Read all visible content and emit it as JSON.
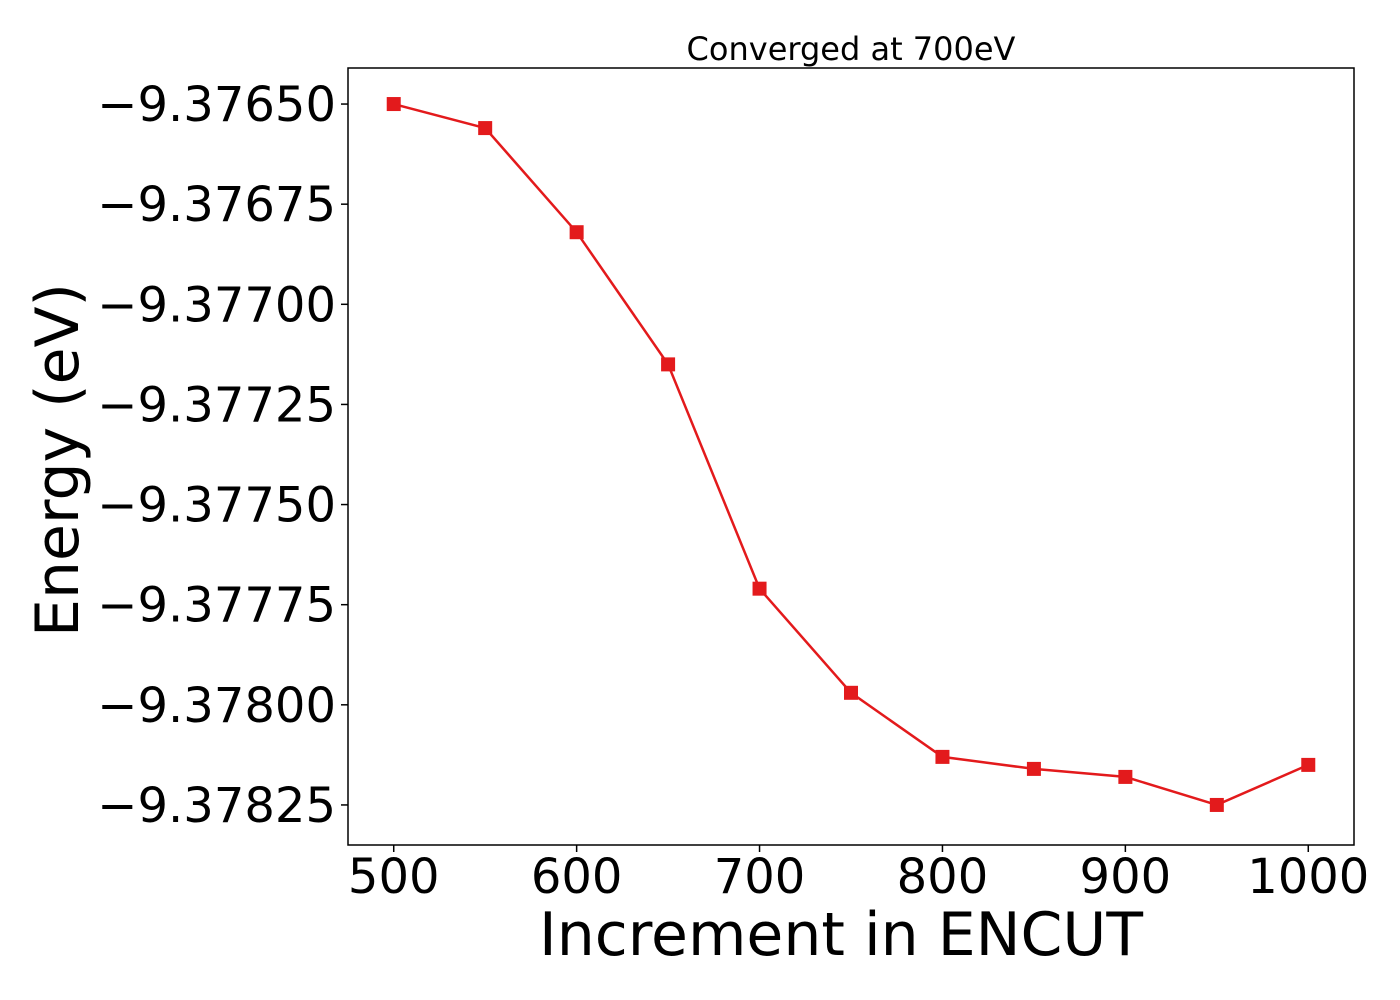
{
  "chart_data": {
    "type": "line",
    "title": "Converged at 700eV",
    "xlabel": "Increment in ENCUT",
    "ylabel": "Energy (eV)",
    "xlim": [
      475,
      1025
    ],
    "ylim": [
      -9.37835,
      -9.37641
    ],
    "x_ticks": [
      500,
      600,
      700,
      800,
      900,
      1000
    ],
    "x_tick_labels": [
      "500",
      "600",
      "700",
      "800",
      "900",
      "1000"
    ],
    "y_ticks": [
      -9.3765,
      -9.37675,
      -9.377,
      -9.37725,
      -9.3775,
      -9.37775,
      -9.378,
      -9.37825
    ],
    "y_tick_labels": [
      "−9.37650",
      "−9.37675",
      "−9.37700",
      "−9.37725",
      "−9.37750",
      "−9.37775",
      "−9.37800",
      "−9.37825"
    ],
    "grid": false,
    "series": [
      {
        "marker": "square",
        "color": "#e31a1c",
        "x": [
          500,
          550,
          600,
          650,
          700,
          750,
          800,
          850,
          900,
          950,
          1000
        ],
        "y": [
          -9.3765,
          -9.37656,
          -9.37682,
          -9.37715,
          -9.37771,
          -9.37797,
          -9.37813,
          -9.37816,
          -9.37818,
          -9.37825,
          -9.37815
        ]
      }
    ]
  }
}
